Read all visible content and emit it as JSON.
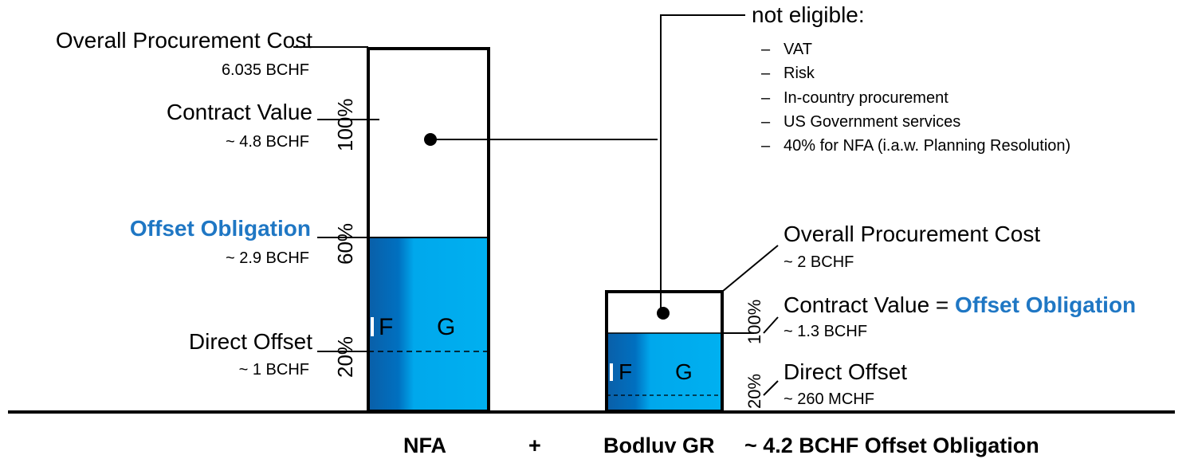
{
  "colors": {
    "offset_label": "#1f77c4",
    "bar_fill_light": "#00b0f0",
    "bar_fill_dark": "#0070c0",
    "outline": "#000000"
  },
  "nfa": {
    "overall_cost_label": "Overall Procurement Cost",
    "overall_cost_value": "6.035 BCHF",
    "contract_value_label": "Contract Value",
    "contract_value_value": "~ 4.8 BCHF",
    "offset_label": "Offset Obligation",
    "offset_value": "~ 2.9 BCHF",
    "direct_offset_label": "Direct Offset",
    "direct_offset_value": "~ 1 BCHF",
    "pct_100": "100%",
    "pct_60": "60%",
    "pct_20": "20%",
    "seg_i": "I",
    "seg_f": "F",
    "seg_g": "G"
  },
  "bodluv": {
    "overall_cost_label": "Overall Procurement Cost",
    "overall_cost_value": "~ 2 BCHF",
    "contract_value_prefix": "Contract Value = ",
    "contract_value_offset": "Offset Obligation",
    "contract_value_value": "~ 1.3 BCHF",
    "direct_offset_label": "Direct Offset",
    "direct_offset_value": "~ 260 MCHF",
    "pct_100": "100%",
    "pct_20": "20%",
    "seg_i": "I",
    "seg_f": "F",
    "seg_g": "G"
  },
  "not_eligible": {
    "title": "not eligible:",
    "items": [
      "VAT",
      "Risk",
      "In-country procurement",
      "US Government services",
      "40% for NFA (i.a.w. Planning Resolution)"
    ]
  },
  "footer": {
    "nfa": "NFA",
    "plus": "+",
    "bodluv": "Bodluv GR",
    "total": "~ 4.2 BCHF Offset Obligation"
  }
}
